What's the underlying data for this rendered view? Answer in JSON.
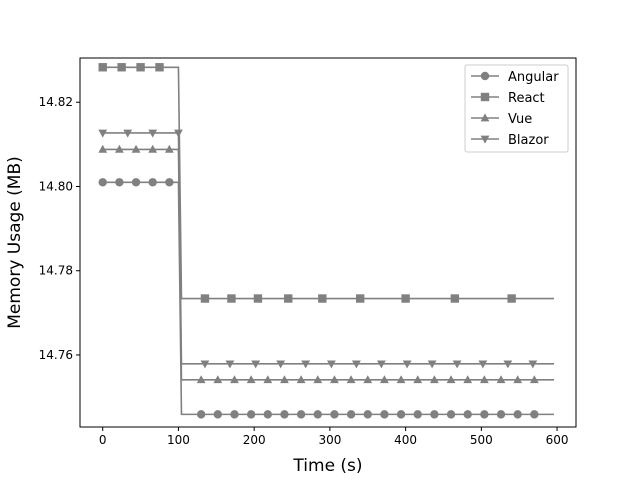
{
  "chart_data": {
    "type": "line",
    "xlabel": "Time (s)",
    "ylabel": "Memory Usage (MB)",
    "xlim": [
      -30,
      625
    ],
    "ylim": [
      14.7429,
      14.8305
    ],
    "xticks": [
      0,
      100,
      200,
      300,
      400,
      500,
      600
    ],
    "yticks": [
      14.76,
      14.78,
      14.8,
      14.82
    ],
    "ytick_labels": [
      "14.76",
      "14.78",
      "14.80",
      "14.82"
    ],
    "legend_position": "upper right",
    "grid": false,
    "line_color": "#808080",
    "series": [
      {
        "name": "Angular",
        "marker": "circle",
        "x": [
          0,
          100,
          104,
          596
        ],
        "y": [
          14.801,
          14.801,
          14.7459,
          14.7459
        ],
        "marker_x": [
          0,
          22,
          44,
          66,
          88,
          130,
          152,
          174,
          196,
          218,
          240,
          262,
          284,
          306,
          328,
          350,
          372,
          394,
          416,
          438,
          460,
          482,
          504,
          526,
          548,
          570
        ],
        "marker_y": [
          14.801,
          14.801,
          14.801,
          14.801,
          14.801,
          14.7459,
          14.7459,
          14.7459,
          14.7459,
          14.7459,
          14.7459,
          14.7459,
          14.7459,
          14.7459,
          14.7459,
          14.7459,
          14.7459,
          14.7459,
          14.7459,
          14.7459,
          14.7459,
          14.7459,
          14.7459,
          14.7459,
          14.7459,
          14.7459
        ]
      },
      {
        "name": "React",
        "marker": "square",
        "x": [
          0,
          100,
          104,
          596
        ],
        "y": [
          14.8283,
          14.8283,
          14.7734,
          14.7734
        ],
        "marker_x": [
          0,
          25,
          50,
          75,
          135,
          170,
          205,
          245,
          290,
          340,
          400,
          465,
          540
        ],
        "marker_y": [
          14.8283,
          14.8283,
          14.8283,
          14.8283,
          14.7734,
          14.7734,
          14.7734,
          14.7734,
          14.7734,
          14.7734,
          14.7734,
          14.7734,
          14.7734
        ]
      },
      {
        "name": "Vue",
        "marker": "triangle-up",
        "x": [
          0,
          100,
          104,
          596
        ],
        "y": [
          14.8088,
          14.8088,
          14.7541,
          14.7541
        ],
        "marker_x": [
          0,
          22,
          44,
          66,
          88,
          130,
          152,
          174,
          196,
          218,
          240,
          262,
          284,
          306,
          328,
          350,
          372,
          394,
          416,
          438,
          460,
          482,
          504,
          526,
          548,
          570
        ],
        "marker_y": [
          14.8088,
          14.8088,
          14.8088,
          14.8088,
          14.8088,
          14.7541,
          14.7541,
          14.7541,
          14.7541,
          14.7541,
          14.7541,
          14.7541,
          14.7541,
          14.7541,
          14.7541,
          14.7541,
          14.7541,
          14.7541,
          14.7541,
          14.7541,
          14.7541,
          14.7541,
          14.7541,
          14.7541,
          14.7541,
          14.7541
        ]
      },
      {
        "name": "Blazor",
        "marker": "triangle-down",
        "x": [
          0,
          100,
          104,
          596
        ],
        "y": [
          14.8127,
          14.8127,
          14.7579,
          14.7579
        ],
        "marker_x": [
          0,
          33,
          66,
          100,
          135,
          168,
          202,
          235,
          268,
          302,
          335,
          368,
          402,
          435,
          468,
          502,
          535,
          568
        ],
        "marker_y": [
          14.8127,
          14.8127,
          14.8127,
          14.8127,
          14.7579,
          14.7579,
          14.7579,
          14.7579,
          14.7579,
          14.7579,
          14.7579,
          14.7579,
          14.7579,
          14.7579,
          14.7579,
          14.7579,
          14.7579,
          14.7579
        ]
      }
    ]
  }
}
